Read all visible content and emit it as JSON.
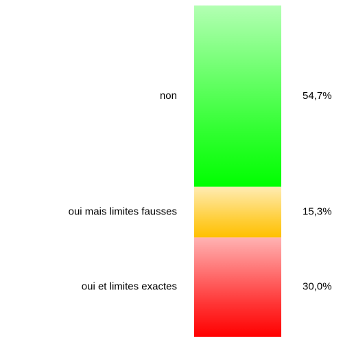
{
  "chart_data": {
    "type": "stacked-column",
    "categories": [
      "oui et limites exactes",
      "oui mais limites fausses",
      "non"
    ],
    "values": [
      30.0,
      15.3,
      54.7
    ],
    "value_labels": [
      "30,0%",
      "15,3%",
      "54,7%"
    ],
    "colors": [
      "#ff0000",
      "#ffc000",
      "#00ff00"
    ]
  }
}
